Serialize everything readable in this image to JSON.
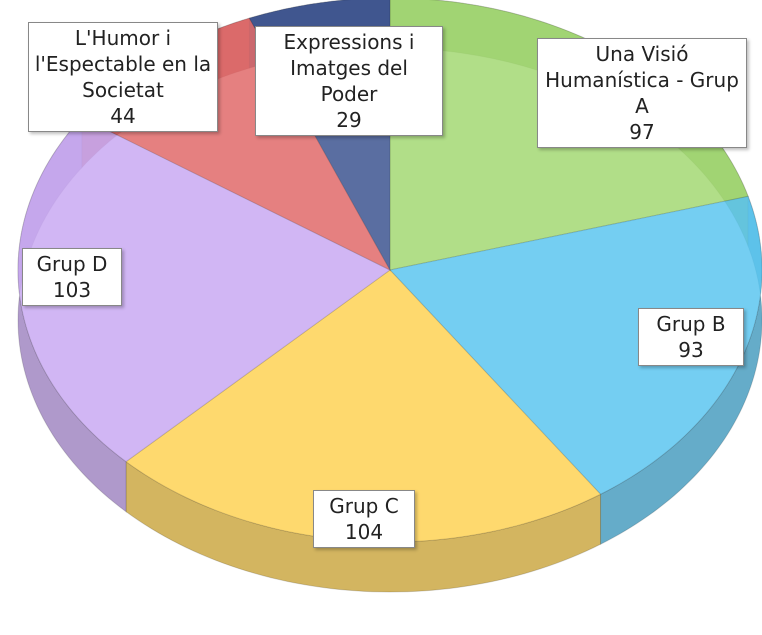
{
  "chart_data": {
    "type": "pie",
    "categories": [
      "Una Visió Humanística - Grup A",
      "Grup B",
      "Grup C",
      "Grup D",
      "L'Humor i l'Espectable en la Societat",
      "Expressions i Imatges del Poder"
    ],
    "values": [
      97,
      93,
      104,
      103,
      44,
      29
    ],
    "colors": [
      "#a3d873",
      "#5cc6f0",
      "#fed255",
      "#c9a9f2",
      "#e06a6a",
      "#3d5590"
    ]
  }
}
